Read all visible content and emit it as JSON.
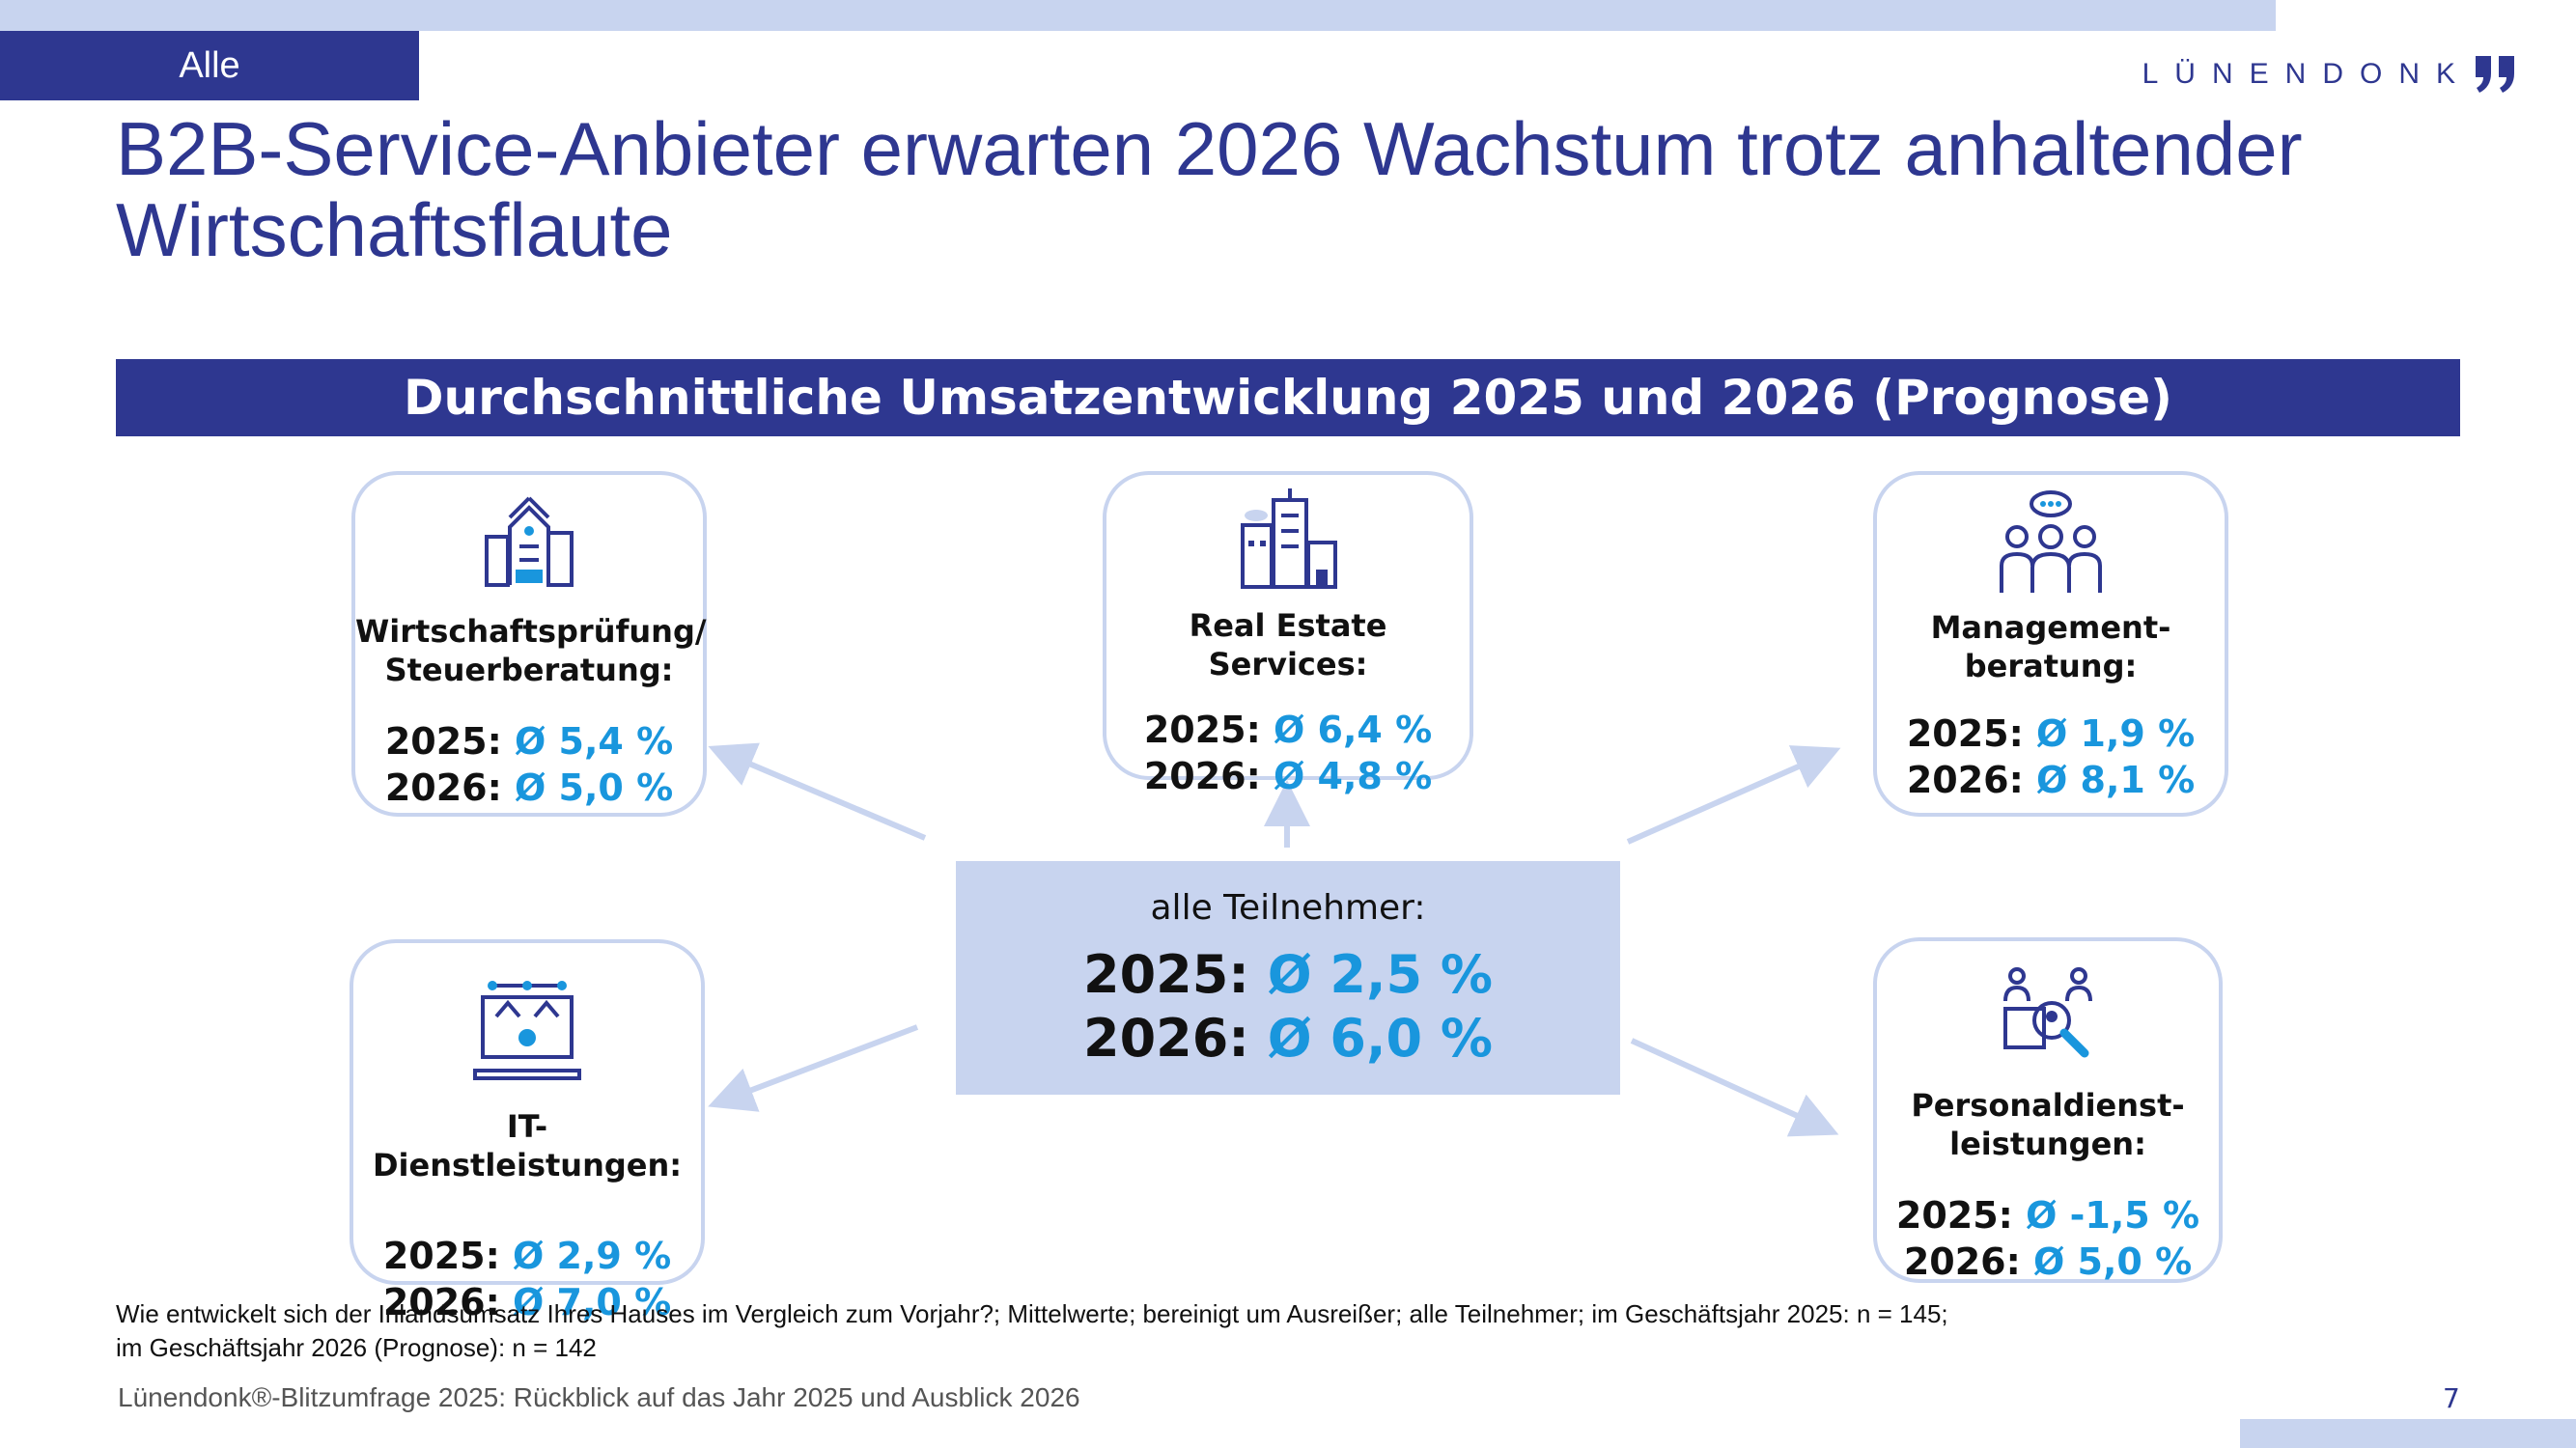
{
  "header": {
    "tag": "Alle",
    "logo": "LÜNENDONK",
    "title": "B2B-Service-Anbieter erwarten 2026 Wachstum trotz anhaltender Wirtschaftsflaute"
  },
  "banner": "Durchschnittliche Umsatzentwicklung 2025 und 2026 (Prognose)",
  "center": {
    "title": "alle Teilnehmer:",
    "y2025_label": "2025:",
    "y2025_value": "Ø 2,5 %",
    "y2026_label": "2026:",
    "y2026_value": "Ø 6,0 %"
  },
  "segments": {
    "wp": {
      "title_line1": "Wirtschaftsprüfung/",
      "title_line2": "Steuerberatung:",
      "y2025_label": "2025:",
      "y2025_value": "Ø 5,4 %",
      "y2026_label": "2026:",
      "y2026_value": "Ø 5,0 %",
      "icon": "city-buildings-icon"
    },
    "re": {
      "title_line1": "Real Estate Services:",
      "y2025_label": "2025:",
      "y2025_value": "Ø 6,4 %",
      "y2026_label": "2026:",
      "y2026_value": "Ø 4,8 %",
      "icon": "office-towers-icon"
    },
    "mb": {
      "title_line1": "Management-",
      "title_line2": "beratung:",
      "y2025_label": "2025:",
      "y2025_value": "Ø 1,9 %",
      "y2026_label": "2026:",
      "y2026_value": "Ø 8,1 %",
      "icon": "team-discussion-icon"
    },
    "it": {
      "title_line1": "IT-Dienstleistungen:",
      "y2025_label": "2025:",
      "y2025_value": "Ø 2,9 %",
      "y2026_label": "2026:",
      "y2026_value": "Ø 7,0 %",
      "icon": "laptop-gear-icon"
    },
    "pd": {
      "title_line1": "Personaldienst-",
      "title_line2": "leistungen:",
      "y2025_label": "2025:",
      "y2025_value": "Ø -1,5 %",
      "y2026_label": "2026:",
      "y2026_value": "Ø 5,0 %",
      "icon": "recruiting-search-icon"
    }
  },
  "footnote": {
    "line1": "Wie entwickelt sich der Inlandsumsatz Ihres Hauses im Vergleich zum Vorjahr?; Mittelwerte; bereinigt um Ausreißer; alle Teilnehmer; im Geschäftsjahr 2025: n = 145;",
    "line2": "im Geschäftsjahr 2026 (Prognose): n = 142"
  },
  "footer": {
    "source": "Lünendonk®-Blitzumfrage 2025: Rückblick auf das Jahr 2025 und Ausblick 2026",
    "page": "7"
  },
  "colors": {
    "navy": "#2e3790",
    "light_blue": "#c8d4ef",
    "value_blue": "#1996dd"
  }
}
